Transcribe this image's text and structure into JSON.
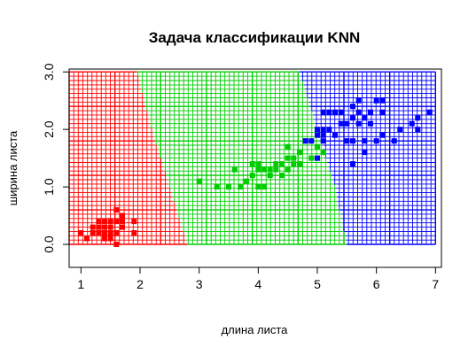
{
  "chart_data": {
    "type": "scatter",
    "title": "Задача классификации KNN",
    "xlabel": "длина листа",
    "ylabel": "ширина листа",
    "xlim": [
      0.8,
      7.1
    ],
    "ylim": [
      -0.4,
      3.05
    ],
    "x_ticks": [
      1,
      2,
      3,
      4,
      5,
      6,
      7
    ],
    "y_ticks": [
      0.0,
      1.0,
      2.0,
      3.0
    ],
    "x_tick_labels": [
      "1",
      "2",
      "3",
      "4",
      "5",
      "6",
      "7"
    ],
    "y_tick_labels": [
      "0.0",
      "1.0",
      "2.0",
      "3.0"
    ],
    "grid": true,
    "colors": {
      "class1": "#ff0000",
      "class2": "#00cd00",
      "class3": "#0000ff"
    },
    "background_regions": {
      "grid_x_range": [
        0.8,
        7.0
      ],
      "grid_y_range": [
        0.0,
        3.0
      ],
      "boundary1_points": [
        [
          1.95,
          3.0
        ],
        [
          2.2,
          2.0
        ],
        [
          2.5,
          1.0
        ],
        [
          2.8,
          0.0
        ]
      ],
      "boundary2_points": [
        [
          4.7,
          3.0
        ],
        [
          5.0,
          2.0
        ],
        [
          5.3,
          1.0
        ],
        [
          5.5,
          0.0
        ]
      ]
    },
    "series": [
      {
        "class": "class1",
        "points": [
          [
            1.0,
            0.2
          ],
          [
            1.1,
            0.1
          ],
          [
            1.2,
            0.2
          ],
          [
            1.3,
            0.4
          ],
          [
            1.3,
            0.2
          ],
          [
            1.3,
            0.3
          ],
          [
            1.4,
            0.2
          ],
          [
            1.4,
            0.3
          ],
          [
            1.4,
            0.1
          ],
          [
            1.4,
            0.4
          ],
          [
            1.5,
            0.2
          ],
          [
            1.5,
            0.4
          ],
          [
            1.5,
            0.1
          ],
          [
            1.5,
            0.3
          ],
          [
            1.6,
            0.2
          ],
          [
            1.6,
            0.4
          ],
          [
            1.6,
            0.6
          ],
          [
            1.7,
            0.4
          ],
          [
            1.7,
            0.5
          ],
          [
            1.7,
            0.3
          ],
          [
            1.9,
            0.2
          ],
          [
            1.9,
            0.4
          ],
          [
            1.2,
            0.3
          ],
          [
            1.6,
            0.0
          ]
        ]
      },
      {
        "class": "class2",
        "points": [
          [
            3.0,
            1.1
          ],
          [
            3.3,
            1.0
          ],
          [
            3.5,
            1.0
          ],
          [
            3.6,
            1.3
          ],
          [
            3.7,
            1.0
          ],
          [
            3.8,
            1.1
          ],
          [
            3.9,
            1.2
          ],
          [
            3.9,
            1.4
          ],
          [
            4.0,
            1.0
          ],
          [
            4.0,
            1.3
          ],
          [
            4.1,
            1.0
          ],
          [
            4.1,
            1.3
          ],
          [
            4.2,
            1.2
          ],
          [
            4.2,
            1.3
          ],
          [
            4.3,
            1.3
          ],
          [
            4.4,
            1.2
          ],
          [
            4.4,
            1.4
          ],
          [
            4.5,
            1.5
          ],
          [
            4.5,
            1.3
          ],
          [
            4.5,
            1.7
          ],
          [
            4.6,
            1.4
          ],
          [
            4.6,
            1.5
          ],
          [
            4.7,
            1.4
          ],
          [
            4.7,
            1.6
          ],
          [
            4.8,
            1.8
          ],
          [
            4.9,
            1.5
          ],
          [
            5.0,
            1.7
          ],
          [
            5.1,
            1.6
          ],
          [
            4.0,
            1.4
          ],
          [
            4.3,
            1.4
          ]
        ]
      },
      {
        "class": "class3",
        "points": [
          [
            4.8,
            1.8
          ],
          [
            4.9,
            1.8
          ],
          [
            5.0,
            1.5
          ],
          [
            5.0,
            2.0
          ],
          [
            5.1,
            1.9
          ],
          [
            5.1,
            2.0
          ],
          [
            5.1,
            2.3
          ],
          [
            5.1,
            1.8
          ],
          [
            5.2,
            2.3
          ],
          [
            5.2,
            2.0
          ],
          [
            5.3,
            1.9
          ],
          [
            5.3,
            2.3
          ],
          [
            5.4,
            2.1
          ],
          [
            5.4,
            2.3
          ],
          [
            5.5,
            1.8
          ],
          [
            5.5,
            2.1
          ],
          [
            5.6,
            1.4
          ],
          [
            5.6,
            1.8
          ],
          [
            5.6,
            2.2
          ],
          [
            5.6,
            2.4
          ],
          [
            5.7,
            2.1
          ],
          [
            5.7,
            2.3
          ],
          [
            5.7,
            2.5
          ],
          [
            5.8,
            1.8
          ],
          [
            5.8,
            2.2
          ],
          [
            5.9,
            2.1
          ],
          [
            5.9,
            2.3
          ],
          [
            6.0,
            1.8
          ],
          [
            6.0,
            2.5
          ],
          [
            6.1,
            1.9
          ],
          [
            6.1,
            2.3
          ],
          [
            6.1,
            2.5
          ],
          [
            6.3,
            1.8
          ],
          [
            6.4,
            2.0
          ],
          [
            6.6,
            2.1
          ],
          [
            6.7,
            2.2
          ],
          [
            6.7,
            2.0
          ],
          [
            6.9,
            2.3
          ],
          [
            5.8,
            1.6
          ],
          [
            5.0,
            1.9
          ]
        ]
      }
    ]
  }
}
